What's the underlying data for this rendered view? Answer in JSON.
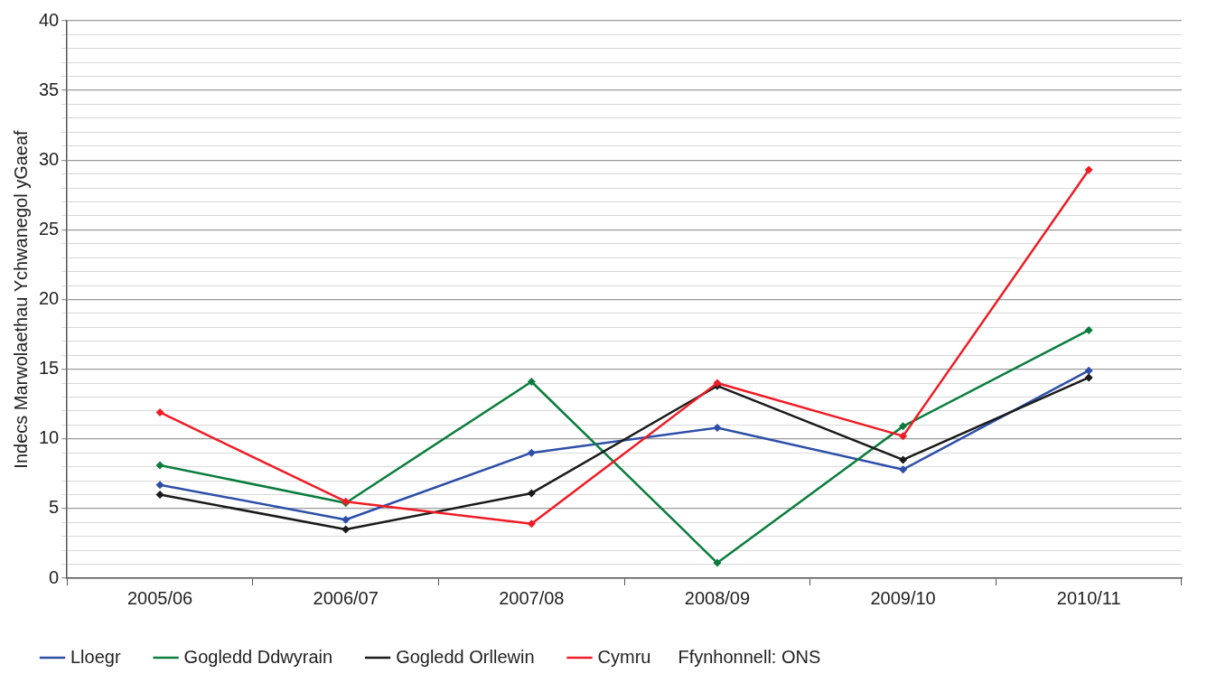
{
  "chart_data": {
    "type": "line",
    "ylabel": "Indecs Marwolaethau Ychwanegol yGaeaf",
    "annotations": [
      "Ffynhonnell: ONS"
    ],
    "categories": [
      "2005/06",
      "2006/07",
      "2007/08",
      "2008/09",
      "2009/10",
      "2010/11"
    ],
    "series": [
      {
        "name": "Lloegr",
        "color": "#2e4fa8",
        "values": [
          6.7,
          4.2,
          9.0,
          10.8,
          7.8,
          14.9
        ]
      },
      {
        "name": "Gogledd Ddwyrain",
        "color": "#0a7d3c",
        "values": [
          8.1,
          5.4,
          14.1,
          1.1,
          10.9,
          17.8
        ]
      },
      {
        "name": "Gogledd Orllewin",
        "color": "#1a1a1a",
        "values": [
          6.0,
          3.5,
          6.1,
          13.8,
          8.5,
          14.4
        ]
      },
      {
        "name": "Cymru",
        "color": "#ee1c25",
        "values": [
          11.9,
          5.5,
          3.9,
          14.0,
          10.2,
          29.3
        ]
      }
    ],
    "ylim": [
      0,
      40
    ],
    "yticks": [
      0,
      {
        "value": 1,
        "label": null
      },
      {
        "value": 2,
        "label": null
      },
      {
        "value": 3,
        "label": null
      },
      {
        "value": 4,
        "label": null
      },
      5,
      {
        "value": 6,
        "label": null
      },
      {
        "value": 7,
        "label": null
      },
      {
        "value": 8,
        "label": null
      },
      {
        "value": 9,
        "label": null
      },
      10,
      {
        "value": 11,
        "label": null
      },
      {
        "value": 12,
        "label": null
      },
      {
        "value": 13,
        "label": null
      },
      {
        "value": 14,
        "label": null
      },
      15,
      {
        "value": 16,
        "label": null
      },
      {
        "value": 17,
        "label": null
      },
      {
        "value": 18,
        "label": null
      },
      {
        "value": 19,
        "label": null
      },
      20,
      {
        "value": 21,
        "label": null
      },
      {
        "value": 22,
        "label": null
      },
      {
        "value": 23,
        "label": null
      },
      {
        "value": 24,
        "label": null
      },
      25,
      {
        "value": 26,
        "label": null
      },
      {
        "value": 27,
        "label": null
      },
      {
        "value": 28,
        "label": null
      },
      {
        "value": 29,
        "label": null
      },
      30,
      {
        "value": 31,
        "label": null
      },
      {
        "value": 32,
        "label": null
      },
      {
        "value": 33,
        "label": null
      },
      {
        "value": 34,
        "label": null
      },
      35,
      {
        "value": 36,
        "label": null
      },
      {
        "value": 37,
        "label": null
      },
      {
        "value": 38,
        "label": null
      },
      {
        "value": 39,
        "label": null
      },
      40
    ],
    "grid": "y",
    "legend": "bottom",
    "marker": "diamond",
    "line_style": "solid"
  }
}
